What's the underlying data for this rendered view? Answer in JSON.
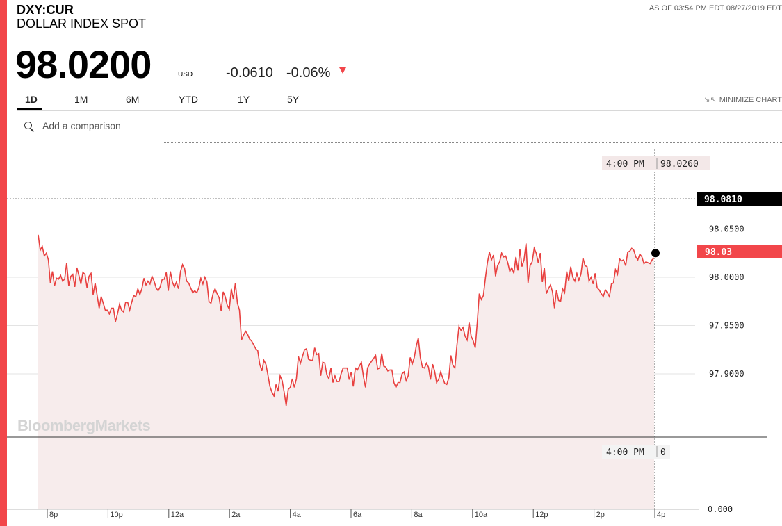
{
  "header": {
    "ticker": "DXY:CUR",
    "name": "DOLLAR INDEX SPOT",
    "as_of": "AS OF 03:54 PM EDT 08/27/2019 EDT",
    "price": "98.0200",
    "currency": "USD",
    "change": "-0.0610",
    "change_pct": "-0.06%"
  },
  "tabs": [
    {
      "label": "1D",
      "active": true
    },
    {
      "label": "1M",
      "active": false
    },
    {
      "label": "6M",
      "active": false
    },
    {
      "label": "YTD",
      "active": false
    },
    {
      "label": "1Y",
      "active": false
    },
    {
      "label": "5Y",
      "active": false
    }
  ],
  "minimize_label": "MINIMIZE CHART",
  "search": {
    "placeholder": "Add a comparison"
  },
  "watermark": "BloombergMarkets",
  "colors": {
    "accent": "#f2464a",
    "line": "#e8403f",
    "fill": "#f7ecec",
    "dark": "#000000"
  },
  "chart_data": {
    "type": "line",
    "series": [
      {
        "values": [
          98.044,
          98.028,
          98.032,
          98.022,
          98.025,
          98.018,
          97.994,
          98.006,
          97.991,
          97.999,
          97.998,
          98.002,
          97.996,
          97.998,
          98.015,
          97.991,
          98.001,
          98.003,
          97.99,
          98.01,
          98.002,
          97.993,
          98.005,
          98.003,
          97.989,
          98.001,
          98.004,
          97.982,
          97.994,
          97.981,
          97.968,
          97.98,
          97.973,
          97.966,
          97.966,
          97.962,
          97.968,
          97.968,
          97.954,
          97.962,
          97.972,
          97.966,
          97.964,
          97.974,
          97.974,
          97.966,
          97.974,
          97.981,
          97.98,
          97.988,
          97.982,
          97.988,
          97.999,
          97.992,
          97.996,
          97.993,
          98.001,
          97.996,
          97.989,
          97.986,
          97.99,
          97.998,
          97.998,
          98.005,
          97.986,
          98.006,
          97.995,
          97.99,
          97.995,
          97.988,
          98.006,
          98.013,
          98.009,
          97.996,
          97.994,
          97.989,
          97.984,
          97.986,
          97.984,
          97.989,
          97.999,
          97.993,
          98.0,
          97.995,
          97.975,
          97.973,
          97.983,
          97.988,
          97.983,
          97.979,
          97.965,
          97.985,
          97.98,
          97.971,
          97.967,
          97.988,
          97.977,
          97.994,
          97.973,
          97.966,
          97.935,
          97.94,
          97.944,
          97.941,
          97.936,
          97.934,
          97.93,
          97.926,
          97.924,
          97.91,
          97.903,
          97.914,
          97.91,
          97.899,
          97.887,
          97.881,
          97.877,
          97.889,
          97.882,
          97.898,
          97.893,
          97.881,
          97.867,
          97.884,
          97.886,
          97.895,
          97.886,
          97.895,
          97.918,
          97.911,
          97.918,
          97.925,
          97.926,
          97.915,
          97.914,
          97.914,
          97.927,
          97.92,
          97.921,
          97.898,
          97.912,
          97.911,
          97.899,
          97.895,
          97.906,
          97.891,
          97.898,
          97.892,
          97.892,
          97.9,
          97.906,
          97.906,
          97.906,
          97.894,
          97.902,
          97.887,
          97.906,
          97.904,
          97.908,
          97.912,
          97.897,
          97.886,
          97.906,
          97.91,
          97.913,
          97.916,
          97.919,
          97.905,
          97.906,
          97.921,
          97.908,
          97.907,
          97.903,
          97.904,
          97.904,
          97.891,
          97.886,
          97.891,
          97.891,
          97.9,
          97.902,
          97.893,
          97.898,
          97.917,
          97.91,
          97.917,
          97.929,
          97.937,
          97.917,
          97.907,
          97.906,
          97.911,
          97.907,
          97.894,
          97.91,
          97.903,
          97.891,
          97.894,
          97.902,
          97.896,
          97.89,
          97.889,
          97.896,
          97.919,
          97.909,
          97.906,
          97.93,
          97.949,
          97.945,
          97.948,
          97.939,
          97.935,
          97.953,
          97.939,
          97.934,
          97.927,
          97.953,
          97.983,
          97.977,
          97.981,
          97.999,
          98.015,
          98.026,
          98.018,
          98.023,
          98.001,
          98.012,
          98.016,
          98.025,
          98.021,
          98.022,
          98.015,
          98.006,
          98.01,
          98.004,
          98.021,
          98.007,
          98.029,
          98.011,
          98.018,
          98.035,
          97.994,
          98.012,
          98.016,
          98.03,
          98.025,
          98.015,
          98.025,
          97.995,
          98.01,
          97.983,
          97.988,
          97.992,
          97.985,
          97.968,
          97.987,
          97.976,
          97.975,
          97.988,
          97.984,
          98.006,
          97.996,
          98.011,
          98.0,
          97.996,
          98.004,
          97.997,
          98.003,
          98.02,
          98.012,
          98.011,
          97.996,
          98.0,
          97.993,
          98.004,
          97.989,
          97.987,
          97.983,
          97.98,
          97.987,
          97.984,
          97.98,
          97.993,
          97.994,
          98.008,
          98.003,
          98.019,
          98.017,
          98.018,
          98.012,
          98.026,
          98.027,
          98.03,
          98.028,
          98.021,
          98.018,
          98.024,
          98.021,
          98.014,
          98.016,
          98.015,
          98.014,
          98.018,
          98.02
        ]
      }
    ],
    "y_ticks": [
      "98.0500",
      "98.0000",
      "97.9500",
      "97.9000"
    ],
    "y_tick_values": [
      98.05,
      98.0,
      97.95,
      97.9
    ],
    "y_zero_label": "0.000",
    "x_ticks": [
      "8p",
      "10p",
      "12a",
      "2a",
      "4a",
      "6a",
      "8a",
      "10a",
      "12p",
      "2p",
      "4p"
    ],
    "prev_close": "98.0810",
    "prev_close_value": 98.081,
    "last_label": "98.03",
    "last_value": 98.025,
    "crosshair_time": "4:00 PM",
    "crosshair_price": "98.0260",
    "volume_time": "4:00 PM",
    "volume_value": "0",
    "grid": true
  }
}
